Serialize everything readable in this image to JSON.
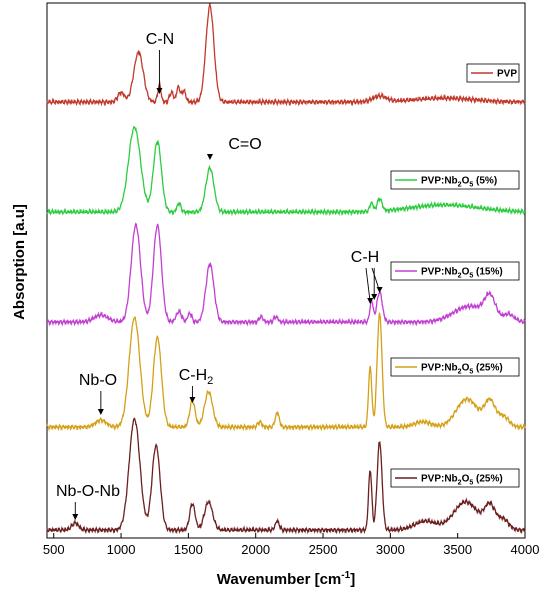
{
  "chart_data": {
    "type": "line",
    "xlabel": "Wavenumber [cm",
    "xlabel_sup": "-1",
    "xlabel_suffix": "]",
    "ylabel": "Absorption [a.u]",
    "xlim": [
      450,
      4000
    ],
    "xticks": [
      500,
      1000,
      1500,
      2000,
      2500,
      3000,
      3500,
      4000
    ],
    "yticks_shown": false,
    "grid": false,
    "series": [
      {
        "name": "PVP",
        "legend_parts": [
          "PVP"
        ],
        "color": "#c0392b",
        "baseline": 0.9,
        "peaks": [
          [
            1000,
            0.05,
            25
          ],
          [
            1130,
            0.26,
            35
          ],
          [
            1285,
            0.09,
            12
          ],
          [
            1375,
            0.05,
            15
          ],
          [
            1425,
            0.08,
            12
          ],
          [
            1465,
            0.06,
            15
          ],
          [
            1660,
            0.5,
            30
          ],
          [
            2920,
            0.03,
            50
          ],
          [
            3400,
            0.02,
            220
          ]
        ]
      },
      {
        "name": "PVP:Nb2O5 (5%)",
        "legend_parts": [
          "PVP:Nb",
          "2",
          "O",
          "5",
          " (5%)"
        ],
        "color": "#2ecc40",
        "baseline": 0.7,
        "peaks": [
          [
            1100,
            0.48,
            45
          ],
          [
            1270,
            0.4,
            30
          ],
          [
            1430,
            0.05,
            15
          ],
          [
            1660,
            0.25,
            30
          ],
          [
            2860,
            0.05,
            12
          ],
          [
            2920,
            0.07,
            18
          ],
          [
            3400,
            0.04,
            250
          ]
        ]
      },
      {
        "name": "PVP:Nb2O5 (15%)",
        "legend_parts": [
          "PVP:Nb",
          "2",
          "O",
          "5",
          " (15%)"
        ],
        "color": "#c040d0",
        "baseline": 0.7,
        "peaks": [
          [
            850,
            0.04,
            50
          ],
          [
            1110,
            0.55,
            35
          ],
          [
            1270,
            0.55,
            30
          ],
          [
            1430,
            0.06,
            20
          ],
          [
            1510,
            0.05,
            15
          ],
          [
            1660,
            0.33,
            30
          ],
          [
            2040,
            0.03,
            15
          ],
          [
            2150,
            0.03,
            15
          ],
          [
            2860,
            0.12,
            12
          ],
          [
            2920,
            0.17,
            20
          ],
          [
            3590,
            0.09,
            120
          ],
          [
            3740,
            0.12,
            40
          ],
          [
            3880,
            0.04,
            40
          ]
        ]
      },
      {
        "name": "PVP:Nb2O5 (25%)",
        "legend_parts": [
          "PVP:Nb",
          "2",
          "O",
          "5",
          " (25%)"
        ],
        "color": "#d4a017",
        "baseline": 0.7,
        "peaks": [
          [
            850,
            0.04,
            40
          ],
          [
            1100,
            0.62,
            40
          ],
          [
            1270,
            0.51,
            30
          ],
          [
            1530,
            0.15,
            20
          ],
          [
            1650,
            0.2,
            30
          ],
          [
            2030,
            0.03,
            15
          ],
          [
            2160,
            0.08,
            15
          ],
          [
            2850,
            0.34,
            12
          ],
          [
            2920,
            0.64,
            18
          ],
          [
            3240,
            0.03,
            60
          ],
          [
            3570,
            0.16,
            80
          ],
          [
            3740,
            0.14,
            40
          ],
          [
            3840,
            0.06,
            40
          ]
        ]
      },
      {
        "name": "PVP:Nb2O5 (25%)",
        "legend_parts": [
          "PVP:Nb",
          "2",
          "O",
          "5",
          " (25%)"
        ],
        "color": "#6b1f1f",
        "baseline": 0.7,
        "peaks": [
          [
            660,
            0.04,
            25
          ],
          [
            1100,
            0.63,
            40
          ],
          [
            1260,
            0.48,
            30
          ],
          [
            1530,
            0.15,
            20
          ],
          [
            1650,
            0.16,
            30
          ],
          [
            2160,
            0.05,
            15
          ],
          [
            2850,
            0.34,
            12
          ],
          [
            2920,
            0.5,
            18
          ],
          [
            3260,
            0.05,
            80
          ],
          [
            3560,
            0.16,
            90
          ],
          [
            3740,
            0.13,
            40
          ],
          [
            3840,
            0.06,
            40
          ]
        ]
      }
    ],
    "annotations": [
      {
        "label": "C-N",
        "sub": "",
        "x": 1285
      },
      {
        "label": "C=O",
        "sub": "",
        "x": 1660
      },
      {
        "label": "C-H",
        "sub": "",
        "x": 2880
      },
      {
        "label": "Nb-O",
        "sub": "",
        "x": 850
      },
      {
        "label": "C-H",
        "sub": "2",
        "x": 1530
      },
      {
        "label": "Nb-O-Nb",
        "sub": "",
        "x": 660
      }
    ]
  }
}
